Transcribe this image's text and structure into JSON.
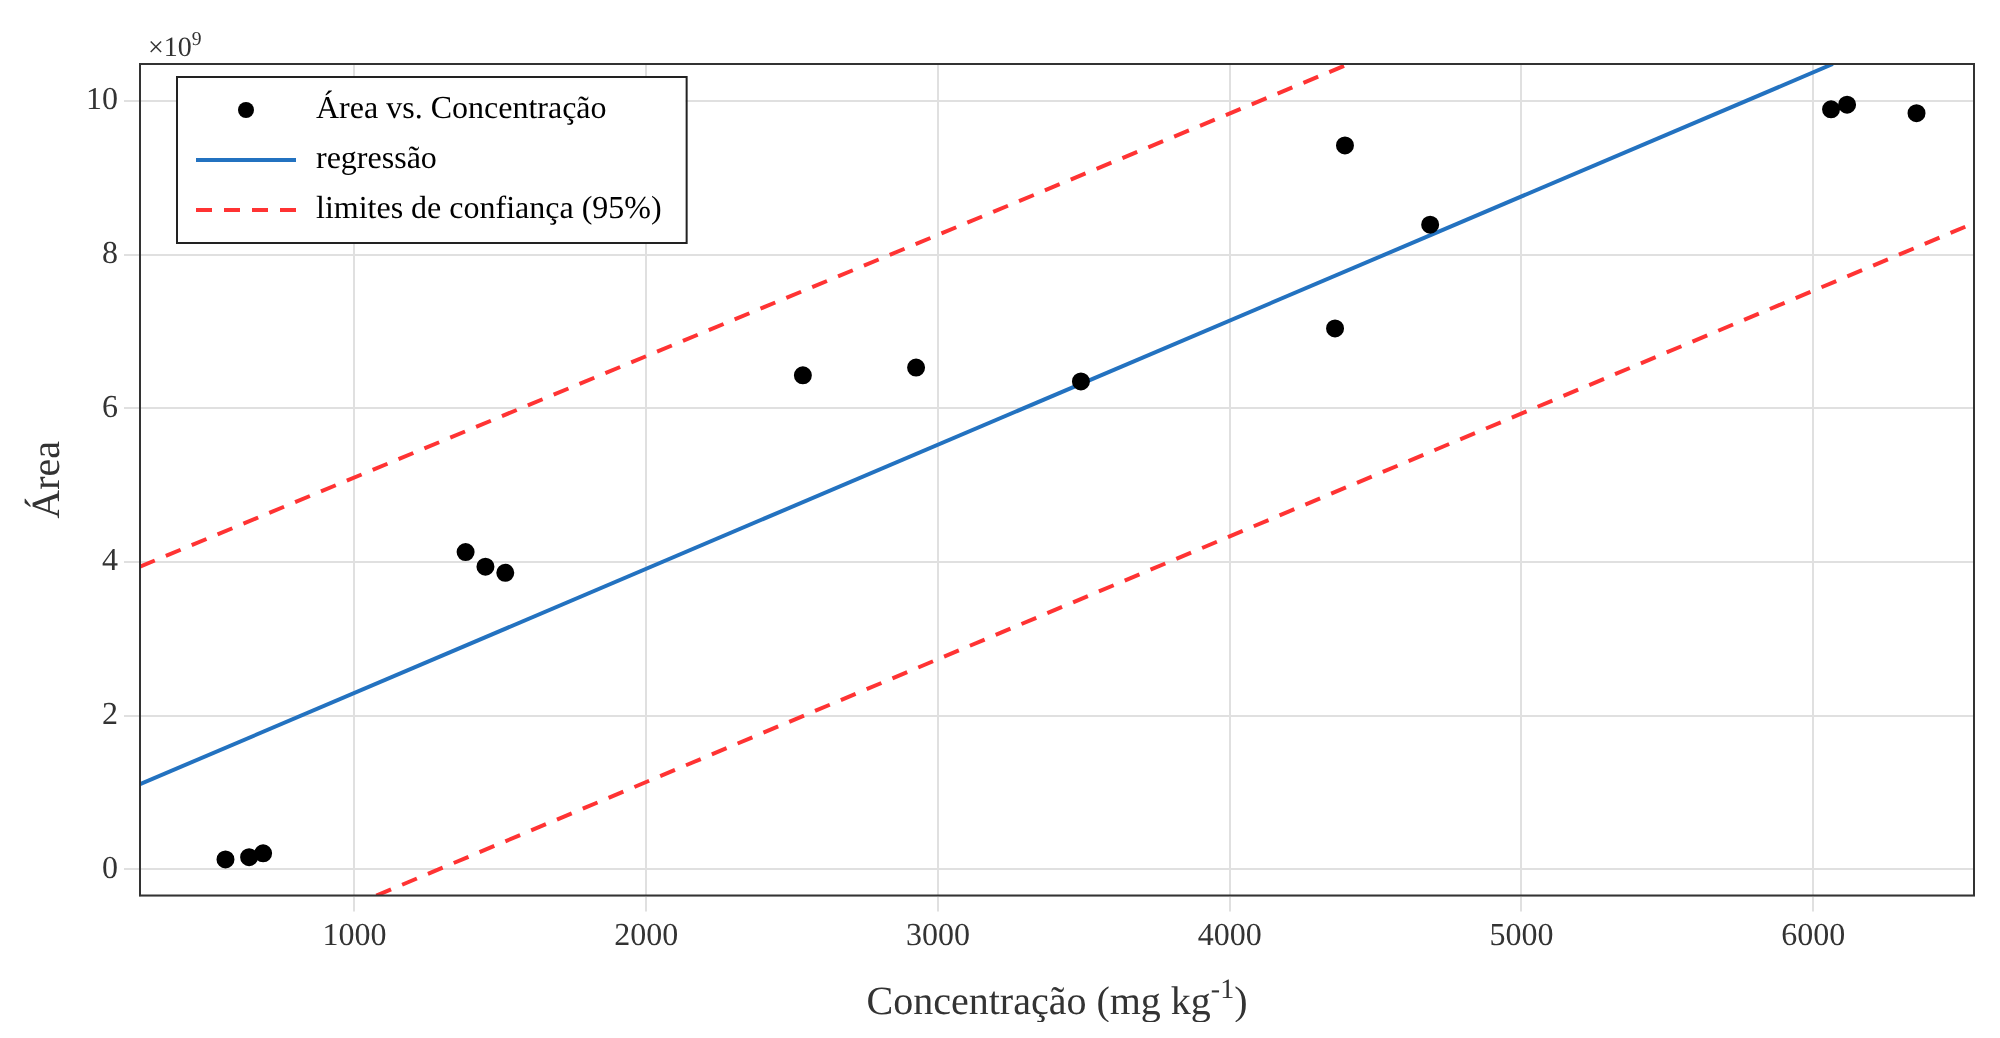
{
  "chart_data": {
    "type": "scatter",
    "xlabel": "Concentração (mg kg$^{-1}$)",
    "ylabel": "Área",
    "annotations": [
      "×10$^{9}$"
    ],
    "xlim": [
      265,
      6551
    ],
    "xticks": [
      1000,
      2000,
      3000,
      4000,
      5000,
      6000
    ],
    "ylim": [
      -0.34,
      10.48
    ],
    "yticks": [
      0,
      2,
      4,
      6,
      8,
      10
    ],
    "grid": true,
    "legend": "top left",
    "series": [
      {
        "name": "Área vs. Concentração",
        "marker": "circle",
        "color": "#000000",
        "x": [
          558,
          639,
          687,
          1381,
          1449,
          1517,
          2537,
          2925,
          3490,
          4361,
          4395,
          4687,
          6061,
          6116,
          6354
        ],
        "values": [
          0.13,
          0.16,
          0.21,
          4.13,
          3.94,
          3.86,
          6.43,
          6.53,
          6.35,
          7.04,
          9.42,
          8.39,
          9.89,
          9.95,
          9.84
        ]
      },
      {
        "name": "regressão",
        "type": "line",
        "marker": "none",
        "line_style": "solid",
        "color": "#2372c0",
        "x": [
          265,
          6067
        ],
        "values": [
          1.11,
          10.48
        ]
      },
      {
        "name": "limites de confiança (95%)",
        "type": "line",
        "marker": "none",
        "line_style": "dashed",
        "color": "#ff3333",
        "x": [
          265,
          4408
        ],
        "values": [
          3.94,
          10.48
        ]
      },
      {
        "type": "line",
        "marker": "none",
        "line_style": "dashed",
        "color": "#ff3333",
        "x": [
          1075,
          6551
        ],
        "values": [
          -0.34,
          8.41
        ]
      }
    ]
  }
}
